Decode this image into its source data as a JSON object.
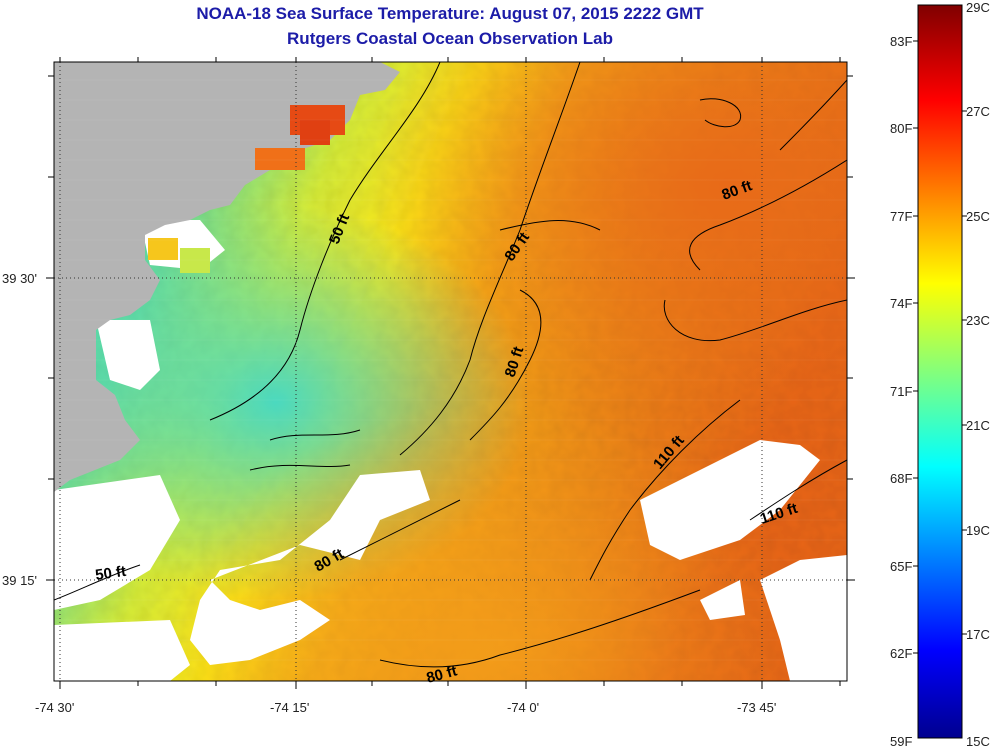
{
  "title": "NOAA-18 Sea Surface Temperature:  August 07, 2015 2222 GMT",
  "subtitle": "Rutgers Coastal Ocean Observation Lab",
  "longitude_labels": [
    "-74 30'",
    "-74 15'",
    "-74 0'",
    "-73 45'"
  ],
  "latitude_labels": [
    "39 30'",
    "39 15'"
  ],
  "depth_labels": [
    "50 ft",
    "80 ft",
    "80 ft",
    "80 ft",
    "110 ft",
    "110 ft",
    "80 ft",
    "80 ft",
    "50 ft"
  ],
  "colorbar": {
    "fahrenheit_labels": [
      "83F",
      "80F",
      "77F",
      "74F",
      "71F",
      "68F",
      "65F",
      "62F",
      "59F"
    ],
    "celsius_labels": [
      "29C",
      "27C",
      "25C",
      "23C",
      "21C",
      "19C",
      "17C",
      "15C"
    ]
  },
  "colors": {
    "title": "#1c1ca8",
    "land": "#b4b4b4",
    "no_data": "#ffffff",
    "warm": "#e8621a",
    "cool": "#4dd6c2"
  }
}
